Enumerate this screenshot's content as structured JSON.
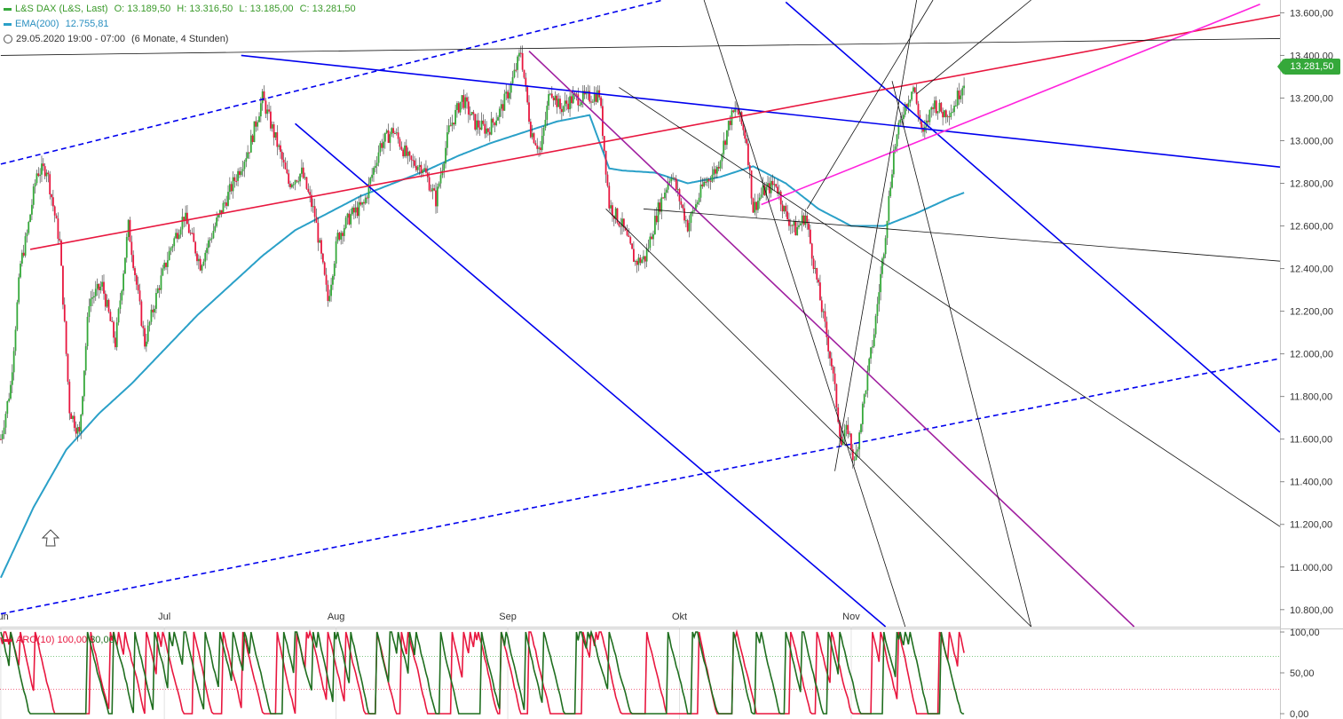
{
  "header": {
    "symbol": "L&S DAX (L&S, Last)",
    "open": "O: 13.189,50",
    "high": "H: 13.316,50",
    "low": "L: 13.185,00",
    "close": "C: 13.281,50",
    "ema_label": "EMA(200)",
    "ema_value": "12.755,81",
    "range": "29.05.2020 19:00 - 07:00",
    "period": "(6 Monate, 4 Stunden)"
  },
  "last_price_tag": "13.281,50",
  "oscillator": {
    "label": "ARO(10)",
    "up_value": "100,00",
    "down_value": "30,00",
    "ticks": [
      "100,00",
      "50,00",
      "0,00"
    ],
    "levels": [
      0,
      30,
      50,
      70,
      100
    ]
  },
  "colors": {
    "up_candle": "#35a83a",
    "down_candle": "#e8173f",
    "ema": "#2aa0c8",
    "trend_blue": "#0000ee",
    "trend_red": "#e8173f",
    "trend_magenta": "#ff22dd",
    "trend_purple": "#a020a0",
    "aroon_up": "#1f6e1f",
    "aroon_down": "#e8173f"
  },
  "chart_data": {
    "type": "candlestick",
    "interval": "4 hours",
    "ylim": [
      10720,
      13660
    ],
    "y_ticks": [
      10800,
      11000,
      11200,
      11400,
      11600,
      11800,
      12000,
      12200,
      12400,
      12600,
      12800,
      13000,
      13200,
      13400,
      13600
    ],
    "y_tick_labels": [
      "10.800,00",
      "11.000,00",
      "11.200,00",
      "11.400,00",
      "11.600,00",
      "11.800,00",
      "12.000,00",
      "12.200,00",
      "12.400,00",
      "12.600,00",
      "12.800,00",
      "13.000,00",
      "13.200,00",
      "13.400,00",
      "13.600,00"
    ],
    "x_month_labels": [
      {
        "label": "Jun",
        "bar": 0
      },
      {
        "label": "Jul",
        "bar": 100
      },
      {
        "label": "Aug",
        "bar": 205
      },
      {
        "label": "Sep",
        "bar": 310
      },
      {
        "label": "Okt",
        "bar": 415
      },
      {
        "label": "Nov",
        "bar": 520
      }
    ],
    "total_bars": 590,
    "price_path": [
      [
        0,
        11600
      ],
      [
        6,
        11850
      ],
      [
        12,
        12420
      ],
      [
        16,
        12560
      ],
      [
        22,
        12850
      ],
      [
        28,
        12870
      ],
      [
        36,
        12520
      ],
      [
        42,
        11740
      ],
      [
        48,
        11620
      ],
      [
        54,
        12250
      ],
      [
        62,
        12320
      ],
      [
        70,
        12050
      ],
      [
        78,
        12600
      ],
      [
        88,
        12050
      ],
      [
        96,
        12300
      ],
      [
        104,
        12500
      ],
      [
        112,
        12650
      ],
      [
        122,
        12420
      ],
      [
        132,
        12620
      ],
      [
        142,
        12800
      ],
      [
        152,
        12970
      ],
      [
        160,
        13200
      ],
      [
        170,
        12960
      ],
      [
        176,
        12800
      ],
      [
        184,
        12850
      ],
      [
        192,
        12650
      ],
      [
        200,
        12250
      ],
      [
        206,
        12550
      ],
      [
        214,
        12650
      ],
      [
        222,
        12700
      ],
      [
        232,
        12980
      ],
      [
        240,
        13050
      ],
      [
        250,
        12900
      ],
      [
        258,
        12880
      ],
      [
        266,
        12720
      ],
      [
        274,
        13050
      ],
      [
        282,
        13200
      ],
      [
        290,
        13080
      ],
      [
        298,
        13050
      ],
      [
        306,
        13150
      ],
      [
        312,
        13260
      ],
      [
        318,
        13420
      ],
      [
        324,
        13050
      ],
      [
        330,
        12950
      ],
      [
        336,
        13250
      ],
      [
        342,
        13150
      ],
      [
        350,
        13200
      ],
      [
        358,
        13200
      ],
      [
        366,
        13220
      ],
      [
        372,
        12700
      ],
      [
        380,
        12600
      ],
      [
        388,
        12430
      ],
      [
        394,
        12450
      ],
      [
        402,
        12680
      ],
      [
        410,
        12850
      ],
      [
        416,
        12700
      ],
      [
        420,
        12600
      ],
      [
        430,
        12800
      ],
      [
        438,
        12870
      ],
      [
        446,
        13100
      ],
      [
        450,
        13150
      ],
      [
        456,
        13000
      ],
      [
        460,
        12680
      ],
      [
        466,
        12760
      ],
      [
        474,
        12800
      ],
      [
        480,
        12650
      ],
      [
        486,
        12580
      ],
      [
        492,
        12650
      ],
      [
        500,
        12300
      ],
      [
        508,
        11950
      ],
      [
        514,
        11580
      ],
      [
        518,
        11650
      ],
      [
        522,
        11480
      ],
      [
        528,
        11800
      ],
      [
        534,
        12100
      ],
      [
        540,
        12500
      ],
      [
        546,
        12950
      ],
      [
        552,
        13150
      ],
      [
        558,
        13250
      ],
      [
        564,
        13020
      ],
      [
        570,
        13180
      ],
      [
        576,
        13130
      ],
      [
        582,
        13150
      ],
      [
        589,
        13282
      ]
    ],
    "ema200_path": [
      [
        0,
        10950
      ],
      [
        20,
        11280
      ],
      [
        40,
        11550
      ],
      [
        60,
        11720
      ],
      [
        80,
        11860
      ],
      [
        100,
        12020
      ],
      [
        120,
        12180
      ],
      [
        140,
        12320
      ],
      [
        160,
        12460
      ],
      [
        180,
        12580
      ],
      [
        200,
        12660
      ],
      [
        220,
        12740
      ],
      [
        240,
        12800
      ],
      [
        260,
        12860
      ],
      [
        280,
        12930
      ],
      [
        300,
        12990
      ],
      [
        320,
        13040
      ],
      [
        340,
        13090
      ],
      [
        360,
        13120
      ],
      [
        372,
        12870
      ],
      [
        380,
        12860
      ],
      [
        400,
        12850
      ],
      [
        420,
        12800
      ],
      [
        440,
        12830
      ],
      [
        460,
        12880
      ],
      [
        480,
        12800
      ],
      [
        500,
        12680
      ],
      [
        520,
        12600
      ],
      [
        540,
        12600
      ],
      [
        560,
        12660
      ],
      [
        580,
        12730
      ],
      [
        589,
        12756
      ]
    ],
    "trendlines": [
      {
        "color": "blue_dash",
        "from": [
          0,
          12890
        ],
        "to": [
          405,
          13660
        ]
      },
      {
        "color": "blue_dash",
        "from": [
          0,
          10780
        ],
        "to": [
          790,
          11990
        ]
      },
      {
        "color": "blue",
        "from": [
          147,
          13400
        ],
        "to": [
          790,
          12870
        ]
      },
      {
        "color": "blue",
        "from": [
          180,
          13080
        ],
        "to": [
          541,
          10720
        ]
      },
      {
        "color": "blue",
        "from": [
          480,
          13650
        ],
        "to": [
          790,
          11580
        ]
      },
      {
        "color": "red",
        "from": [
          18,
          12490
        ],
        "to": [
          790,
          13600
        ]
      },
      {
        "color": "magenta",
        "from": [
          465,
          12700
        ],
        "to": [
          770,
          13640
        ]
      },
      {
        "color": "purple",
        "from": [
          323,
          13420
        ],
        "to": [
          693,
          10720
        ]
      },
      {
        "color": "black",
        "from": [
          0,
          13400
        ],
        "to": [
          790,
          13480
        ]
      },
      {
        "color": "black",
        "from": [
          393,
          12680
        ],
        "to": [
          790,
          12430
        ]
      },
      {
        "color": "black",
        "from": [
          378,
          13250
        ],
        "to": [
          790,
          11150
        ]
      },
      {
        "color": "black",
        "from": [
          430,
          13660
        ],
        "to": [
          553,
          10720
        ]
      },
      {
        "color": "black",
        "from": [
          370,
          12680
        ],
        "to": [
          630,
          10720
        ]
      },
      {
        "color": "black",
        "from": [
          493,
          12680
        ],
        "to": [
          570,
          13660
        ]
      },
      {
        "color": "black",
        "from": [
          510,
          11450
        ],
        "to": [
          560,
          13660
        ]
      },
      {
        "color": "black",
        "from": [
          545,
          13280
        ],
        "to": [
          630,
          10720
        ]
      },
      {
        "color": "black",
        "from": [
          560,
          13220
        ],
        "to": [
          630,
          13660
        ]
      }
    ]
  }
}
